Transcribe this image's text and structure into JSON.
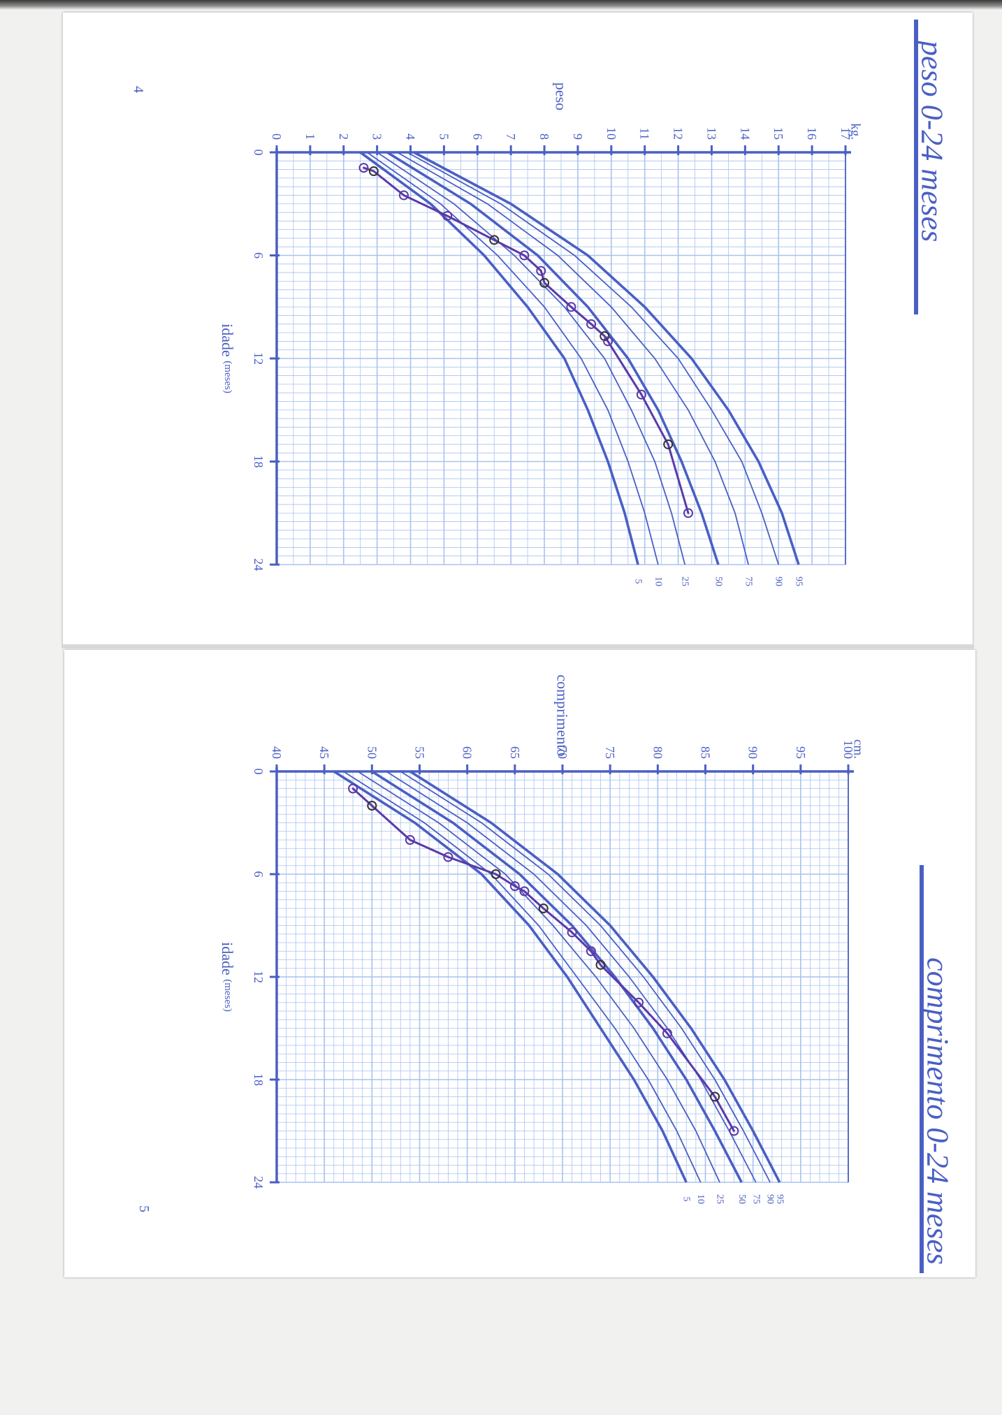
{
  "pages": [
    {
      "page_number": "4",
      "title": "peso 0-24 meses",
      "quantity_label": "peso",
      "unit": "kg.",
      "age_axis_label": "idade",
      "age_axis_unit": "(meses)"
    },
    {
      "page_number": "5",
      "title": "comprimento 0-24 meses",
      "quantity_label": "comprimento",
      "unit": "cm.",
      "age_axis_label": "idade",
      "age_axis_unit": "(meses)"
    }
  ],
  "colors": {
    "ink": "#4a5fc4",
    "grid": "#a9c2ef",
    "pen": "#5a3aa8",
    "pencil": "#333333"
  },
  "chart_data": [
    {
      "type": "line",
      "title": "peso 0-24 meses",
      "xlabel": "idade (meses)",
      "ylabel": "peso",
      "x_ticks": [
        0,
        6,
        12,
        18,
        24
      ],
      "y_ticks": [
        0,
        1,
        2,
        3,
        4,
        5,
        6,
        7,
        8,
        9,
        10,
        11,
        12,
        13,
        14,
        15,
        16,
        17
      ],
      "xlim": [
        0,
        24
      ],
      "ylim": [
        0,
        17
      ],
      "percentile_labels": [
        "5",
        "10",
        "25",
        "50",
        "75",
        "90",
        "95"
      ],
      "curves": [
        {
          "p": "5",
          "x": [
            0,
            3,
            6,
            9,
            12,
            15,
            18,
            21,
            24
          ],
          "y": [
            2.5,
            4.6,
            6.2,
            7.5,
            8.6,
            9.3,
            9.9,
            10.4,
            10.8
          ]
        },
        {
          "p": "10",
          "x": [
            0,
            3,
            6,
            9,
            12,
            15,
            18,
            21,
            24
          ],
          "y": [
            2.7,
            4.9,
            6.6,
            8.0,
            9.1,
            9.9,
            10.5,
            11.0,
            11.4
          ]
        },
        {
          "p": "25",
          "x": [
            0,
            3,
            6,
            9,
            12,
            15,
            18,
            21,
            24
          ],
          "y": [
            3.0,
            5.3,
            7.1,
            8.6,
            9.8,
            10.6,
            11.3,
            11.8,
            12.2
          ]
        },
        {
          "p": "50",
          "x": [
            0,
            3,
            6,
            9,
            12,
            15,
            18,
            21,
            24
          ],
          "y": [
            3.3,
            5.8,
            7.8,
            9.3,
            10.5,
            11.4,
            12.1,
            12.7,
            13.2
          ]
        },
        {
          "p": "75",
          "x": [
            0,
            3,
            6,
            9,
            12,
            15,
            18,
            21,
            24
          ],
          "y": [
            3.6,
            6.3,
            8.4,
            10.0,
            11.3,
            12.3,
            13.1,
            13.7,
            14.1
          ]
        },
        {
          "p": "90",
          "x": [
            0,
            3,
            6,
            9,
            12,
            15,
            18,
            21,
            24
          ],
          "y": [
            3.9,
            6.7,
            8.9,
            10.6,
            12.0,
            13.0,
            13.9,
            14.5,
            15.0
          ]
        },
        {
          "p": "95",
          "x": [
            0,
            3,
            6,
            9,
            12,
            15,
            18,
            21,
            24
          ],
          "y": [
            4.1,
            7.0,
            9.3,
            11.0,
            12.4,
            13.5,
            14.4,
            15.1,
            15.6
          ]
        }
      ],
      "child_series": {
        "x": [
          0.9,
          1.1,
          2.5,
          3.7,
          5.1,
          6.0,
          6.9,
          7.6,
          9.0,
          10.0,
          10.7,
          11.0,
          14.1,
          17.0,
          21.0
        ],
        "y": [
          2.6,
          2.9,
          3.8,
          5.1,
          6.5,
          7.4,
          7.9,
          8.0,
          8.8,
          9.4,
          9.8,
          9.9,
          10.9,
          11.7,
          12.3
        ]
      }
    },
    {
      "type": "line",
      "title": "comprimento 0-24 meses",
      "xlabel": "idade (meses)",
      "ylabel": "comprimento",
      "x_ticks": [
        0,
        6,
        12,
        18,
        24
      ],
      "y_ticks": [
        40,
        45,
        50,
        55,
        60,
        65,
        70,
        75,
        80,
        85,
        90,
        95,
        100
      ],
      "xlim": [
        0,
        24
      ],
      "ylim": [
        40,
        100
      ],
      "percentile_labels": [
        "5",
        "10",
        "25",
        "50",
        "75",
        "90",
        "95"
      ],
      "curves": [
        {
          "p": "5",
          "x": [
            0,
            3,
            6,
            9,
            12,
            15,
            18,
            21,
            24
          ],
          "y": [
            46.0,
            54.5,
            61.5,
            66.5,
            70.5,
            74.0,
            77.5,
            80.5,
            83.0
          ]
        },
        {
          "p": "10",
          "x": [
            0,
            3,
            6,
            9,
            12,
            15,
            18,
            21,
            24
          ],
          "y": [
            47.0,
            55.5,
            62.5,
            67.5,
            71.5,
            75.5,
            79.0,
            82.0,
            84.5
          ]
        },
        {
          "p": "25",
          "x": [
            0,
            3,
            6,
            9,
            12,
            15,
            18,
            21,
            24
          ],
          "y": [
            48.5,
            57.0,
            64.0,
            69.0,
            73.5,
            77.5,
            81.0,
            84.0,
            86.5
          ]
        },
        {
          "p": "50",
          "x": [
            0,
            3,
            6,
            9,
            12,
            15,
            18,
            21,
            24
          ],
          "y": [
            50.0,
            58.5,
            65.5,
            71.0,
            75.5,
            79.5,
            83.0,
            86.0,
            88.8
          ]
        },
        {
          "p": "75",
          "x": [
            0,
            3,
            6,
            9,
            12,
            15,
            18,
            21,
            24
          ],
          "y": [
            51.5,
            60.0,
            67.0,
            72.5,
            77.0,
            81.0,
            84.5,
            87.5,
            90.3
          ]
        },
        {
          "p": "90",
          "x": [
            0,
            3,
            6,
            9,
            12,
            15,
            18,
            21,
            24
          ],
          "y": [
            53.0,
            61.5,
            68.5,
            74.0,
            78.5,
            82.5,
            86.0,
            89.0,
            91.8
          ]
        },
        {
          "p": "95",
          "x": [
            0,
            3,
            6,
            9,
            12,
            15,
            18,
            21,
            24
          ],
          "y": [
            54.0,
            62.5,
            69.5,
            75.0,
            79.5,
            83.5,
            87.0,
            90.0,
            92.8
          ]
        }
      ],
      "child_series": {
        "x": [
          1.0,
          2.0,
          4.0,
          5.0,
          6.0,
          6.7,
          7.0,
          8.0,
          9.4,
          10.5,
          11.3,
          13.5,
          15.3,
          19.0,
          21.0
        ],
        "y": [
          48.0,
          50.0,
          54.0,
          58.0,
          63.0,
          65.0,
          66.0,
          68.0,
          71.0,
          73.0,
          74.0,
          78.0,
          81.0,
          86.0,
          88.0
        ]
      }
    }
  ]
}
